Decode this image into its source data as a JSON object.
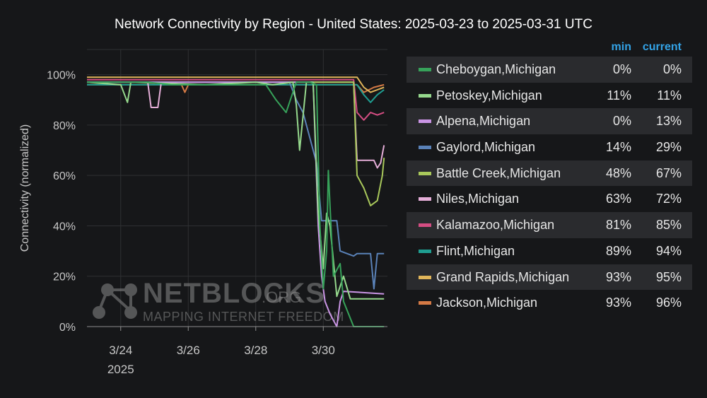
{
  "chart_data": {
    "type": "line",
    "title": "Network Connectivity by Region - United States: 2025-03-23 to 2025-03-31 UTC",
    "ylabel": "Connectivity (normalized)",
    "xlabel": "",
    "x_range": [
      23.0,
      31.9
    ],
    "ylim": [
      0,
      110
    ],
    "y_ticks": [
      {
        "value": 0,
        "label": "0%"
      },
      {
        "value": 20,
        "label": "20%"
      },
      {
        "value": 40,
        "label": "40%"
      },
      {
        "value": 60,
        "label": "60%"
      },
      {
        "value": 80,
        "label": "80%"
      },
      {
        "value": 100,
        "label": "100%"
      }
    ],
    "x_ticks": [
      {
        "value": 24,
        "label": "3/24"
      },
      {
        "value": 26,
        "label": "3/26"
      },
      {
        "value": 28,
        "label": "3/28"
      },
      {
        "value": 30,
        "label": "3/30"
      }
    ],
    "x_year_label": "2025",
    "grid": true,
    "legend_position": "right",
    "legend_headers": {
      "min": "min",
      "current": "current"
    },
    "series": [
      {
        "name": "Cheboygan,Michigan",
        "color": "#37a25a",
        "min": "0%",
        "current": "0%",
        "points": [
          [
            23,
            97
          ],
          [
            24.8,
            97
          ],
          [
            25.5,
            96
          ],
          [
            28.3,
            96
          ],
          [
            28.6,
            90
          ],
          [
            28.9,
            85
          ],
          [
            29.2,
            97
          ],
          [
            29.6,
            97
          ],
          [
            29.8,
            96
          ],
          [
            29.9,
            40
          ],
          [
            30.0,
            15
          ],
          [
            30.1,
            30
          ],
          [
            30.15,
            62
          ],
          [
            30.3,
            20
          ],
          [
            30.5,
            25
          ],
          [
            30.6,
            10
          ],
          [
            30.9,
            0
          ],
          [
            31.8,
            0
          ]
        ]
      },
      {
        "name": "Petoskey,Michigan",
        "color": "#96d98d",
        "min": "11%",
        "current": "11%",
        "points": [
          [
            23,
            97
          ],
          [
            24,
            96
          ],
          [
            24.2,
            89
          ],
          [
            24.3,
            97
          ],
          [
            26.5,
            96
          ],
          [
            28,
            97
          ],
          [
            28.5,
            96
          ],
          [
            29.1,
            97
          ],
          [
            29.2,
            88
          ],
          [
            29.3,
            70
          ],
          [
            29.5,
            97
          ],
          [
            29.7,
            97
          ],
          [
            29.85,
            45
          ],
          [
            30.0,
            23
          ],
          [
            30.1,
            45
          ],
          [
            30.2,
            40
          ],
          [
            30.4,
            12
          ],
          [
            30.6,
            20
          ],
          [
            30.8,
            11
          ],
          [
            31.8,
            11
          ]
        ]
      },
      {
        "name": "Alpena,Michigan",
        "color": "#ca95e5",
        "min": "0%",
        "current": "13%",
        "points": [
          [
            23,
            97
          ],
          [
            29.7,
            97
          ],
          [
            29.85,
            40
          ],
          [
            29.95,
            20
          ],
          [
            30.05,
            10
          ],
          [
            30.2,
            5
          ],
          [
            30.4,
            0
          ],
          [
            30.5,
            10
          ],
          [
            30.6,
            14
          ],
          [
            31.8,
            13
          ]
        ]
      },
      {
        "name": "Gaylord,Michigan",
        "color": "#5a82b8",
        "min": "14%",
        "current": "29%",
        "points": [
          [
            23,
            97
          ],
          [
            29.0,
            97
          ],
          [
            29.2,
            90
          ],
          [
            29.4,
            85
          ],
          [
            29.6,
            75
          ],
          [
            29.8,
            65
          ],
          [
            29.95,
            42
          ],
          [
            30.4,
            42
          ],
          [
            30.5,
            30
          ],
          [
            30.9,
            28
          ],
          [
            31.0,
            29
          ],
          [
            31.4,
            29
          ],
          [
            31.5,
            15
          ],
          [
            31.6,
            29
          ],
          [
            31.8,
            29
          ]
        ]
      },
      {
        "name": "Battle Creek,Michigan",
        "color": "#a9c85b",
        "min": "48%",
        "current": "67%",
        "points": [
          [
            23,
            97
          ],
          [
            30.9,
            97
          ],
          [
            31.0,
            60
          ],
          [
            31.2,
            55
          ],
          [
            31.4,
            48
          ],
          [
            31.6,
            50
          ],
          [
            31.75,
            60
          ],
          [
            31.8,
            67
          ]
        ]
      },
      {
        "name": "Niles,Michigan",
        "color": "#e5aed8",
        "min": "63%",
        "current": "72%",
        "points": [
          [
            23,
            97
          ],
          [
            24.8,
            97
          ],
          [
            24.9,
            87
          ],
          [
            25.1,
            87
          ],
          [
            25.2,
            97
          ],
          [
            30.9,
            97
          ],
          [
            31.0,
            66
          ],
          [
            31.5,
            66
          ],
          [
            31.6,
            63
          ],
          [
            31.7,
            65
          ],
          [
            31.8,
            72
          ]
        ]
      },
      {
        "name": "Kalamazoo,Michigan",
        "color": "#d44d82",
        "min": "81%",
        "current": "85%",
        "points": [
          [
            23,
            98
          ],
          [
            30.9,
            98
          ],
          [
            31.0,
            85
          ],
          [
            31.2,
            82
          ],
          [
            31.4,
            85
          ],
          [
            31.6,
            84
          ],
          [
            31.8,
            85
          ]
        ]
      },
      {
        "name": "Flint,Michigan",
        "color": "#1f9e91",
        "min": "89%",
        "current": "94%",
        "points": [
          [
            23,
            96
          ],
          [
            31.0,
            96
          ],
          [
            31.2,
            92
          ],
          [
            31.4,
            89
          ],
          [
            31.6,
            92
          ],
          [
            31.8,
            94
          ]
        ]
      },
      {
        "name": "Grand Rapids,Michigan",
        "color": "#e0b55a",
        "min": "93%",
        "current": "95%",
        "points": [
          [
            23,
            99
          ],
          [
            31.0,
            99
          ],
          [
            31.2,
            95
          ],
          [
            31.4,
            93
          ],
          [
            31.6,
            94
          ],
          [
            31.8,
            95
          ]
        ]
      },
      {
        "name": "Jackson,Michigan",
        "color": "#d57a45",
        "min": "93%",
        "current": "96%",
        "points": [
          [
            23,
            96
          ],
          [
            25.8,
            96
          ],
          [
            25.9,
            93
          ],
          [
            26.0,
            96
          ],
          [
            31.0,
            96
          ],
          [
            31.2,
            93
          ],
          [
            31.5,
            95
          ],
          [
            31.8,
            96
          ]
        ]
      }
    ]
  },
  "watermark": {
    "brand": "NETBLOCKS",
    "domain": ".ORG",
    "tagline": "MAPPING INTERNET FREEDOM"
  }
}
